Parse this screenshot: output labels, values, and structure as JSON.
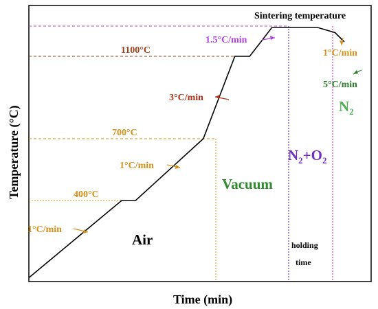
{
  "chart_data": {
    "type": "line",
    "title": "",
    "xlabel": "Time (min)",
    "ylabel": "Temperature (°C)",
    "grid": false,
    "profile_points": [
      {
        "time": 0,
        "temperature": 25
      },
      {
        "time": 100,
        "temperature": 400
      },
      {
        "time": 115,
        "temperature": 400
      },
      {
        "time": 188,
        "temperature": 700
      },
      {
        "time": 222,
        "temperature": 1100
      },
      {
        "time": 238,
        "temperature": 1100
      },
      {
        "time": 262,
        "temperature": 1240
      },
      {
        "time": 311,
        "temperature": 1240
      },
      {
        "time": 330,
        "temperature": 1215
      },
      {
        "time": 340,
        "temperature": 1170
      }
    ],
    "reference_temperatures": [
      {
        "label": "400°C",
        "value": 400,
        "color": "#d4901a"
      },
      {
        "label": "700°C",
        "value": 700,
        "color": "#d4901a"
      },
      {
        "label": "1100°C",
        "value": 1100,
        "color": "#a0401a"
      },
      {
        "label": "Sintering temperature",
        "value": 1240,
        "color": "#c040c0"
      }
    ],
    "atmosphere_regions": [
      {
        "label": "Air",
        "color": "#000000"
      },
      {
        "label": "Vacuum",
        "color": "#2e8b2e"
      },
      {
        "label": "N2+O2",
        "main": "N",
        "sub": "2",
        "rest": "+O",
        "sub2": "2",
        "color": "#7030c0"
      },
      {
        "label": "N2",
        "main": "N",
        "sub": "2",
        "color": "#4caf50"
      }
    ],
    "annotations": {
      "sintering_temperature": "Sintering temperature",
      "holding_time_line1": "holding",
      "holding_time_line2": "time"
    },
    "heating_rates": [
      {
        "label": "1°C/min",
        "color": "#d4901a"
      },
      {
        "label": "1°C/min",
        "color": "#d4901a"
      },
      {
        "label": "3°C/min",
        "color": "#b0301a"
      },
      {
        "label": "1.5°C/min",
        "color": "#b040e0"
      },
      {
        "label": "1°C/min",
        "color": "#d4901a"
      },
      {
        "label": "5°C/min",
        "color": "#2e7d2e"
      }
    ],
    "colors": {
      "profile": "#000000",
      "axis": "#000000",
      "orange": "#d4901a",
      "brown": "#a0401a",
      "magenta": "#c040c0",
      "purple": "#7030c0"
    }
  }
}
